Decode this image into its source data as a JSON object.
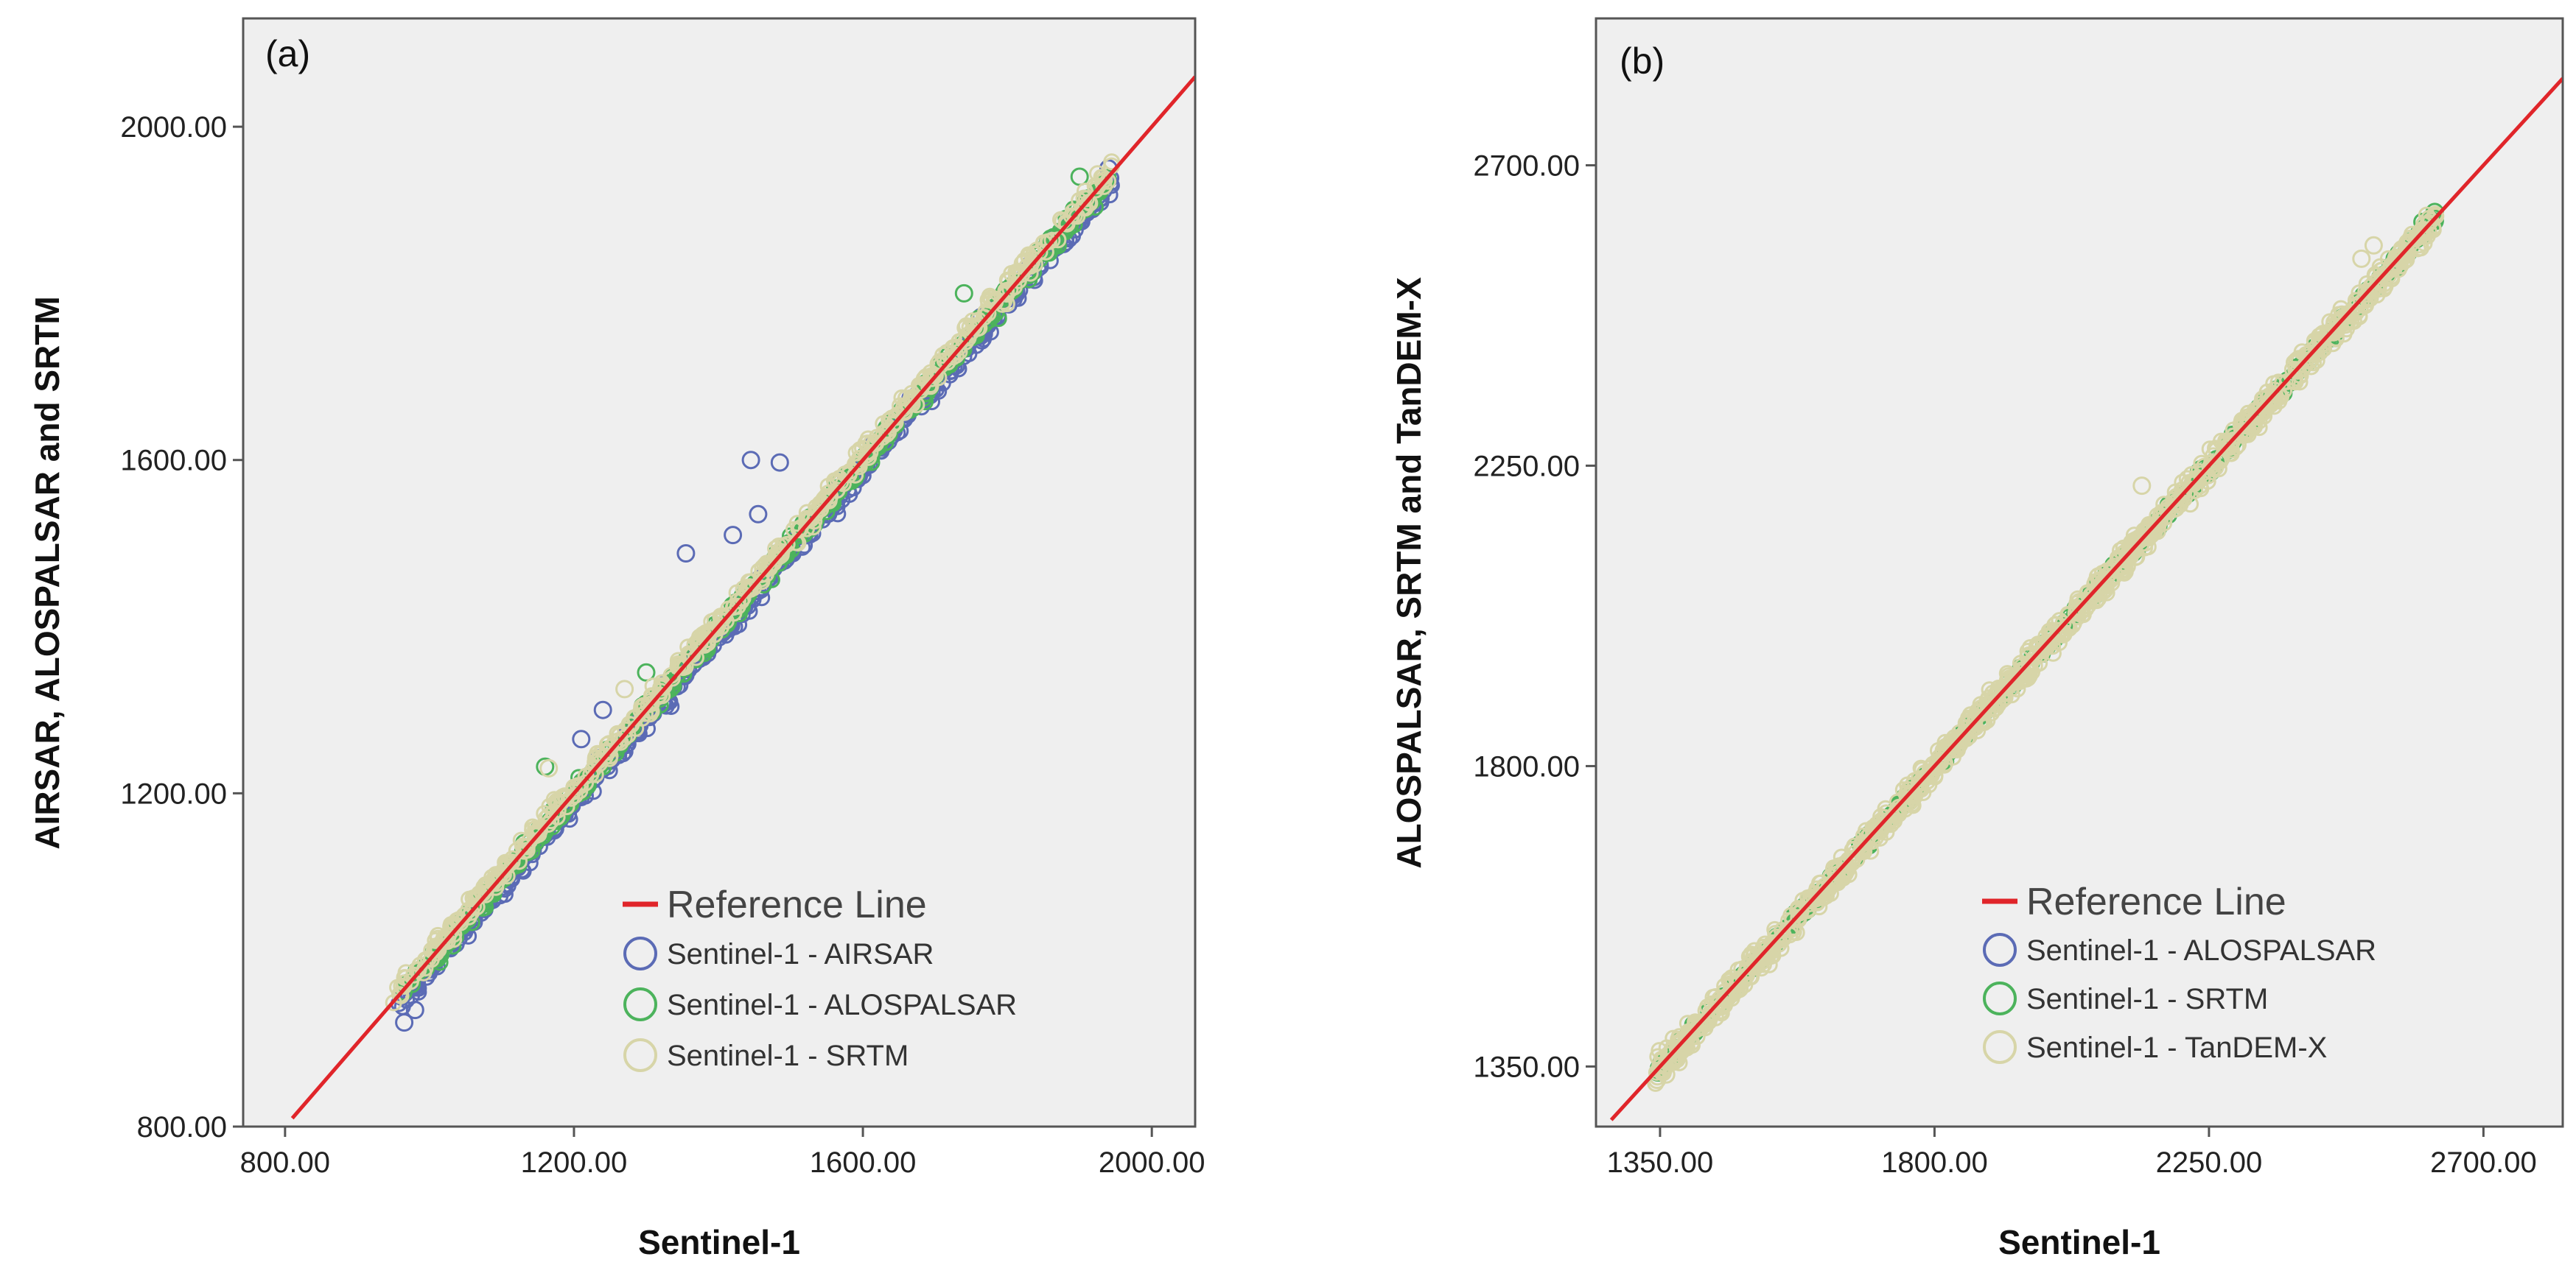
{
  "colors": {
    "airsar": "#5b6bb5",
    "alospalsar": "#4cb35c",
    "srtm": "#d7d5a8",
    "tandemx": "#d7d5a8",
    "reference": "#e0252a",
    "plot_bg": "#efefef"
  },
  "chart_data": [
    {
      "type": "scatter",
      "panel_label": "(a)",
      "xlabel": "Sentinel-1",
      "ylabel": "AIRSAR, ALOSPALSAR and SRTM",
      "xlim": [
        742,
        2060
      ],
      "ylim": [
        800,
        2130
      ],
      "x_ticks": [
        800,
        1200,
        1600,
        2000
      ],
      "y_ticks": [
        800,
        1200,
        1600,
        2000
      ],
      "x_tick_labels": [
        "800.00",
        "1200.00",
        "1600.00",
        "2000.00"
      ],
      "y_tick_labels": [
        "800.00",
        "1200.00",
        "1600.00",
        "2000.00"
      ],
      "grid": false,
      "legend_position": "bottom-right",
      "reference_line": {
        "label": "Reference Line",
        "from": [
          810,
          810
        ],
        "to": [
          2060,
          2060
        ]
      },
      "series": [
        {
          "name": "Sentinel-1 - AIRSAR",
          "key": "airsar",
          "x_range": [
            955,
            1945
          ],
          "offset": -10,
          "spread": 14,
          "outliers": [
            [
              965,
              925
            ],
            [
              980,
              940
            ],
            [
              1355,
              1488
            ],
            [
              1445,
              1600
            ],
            [
              1455,
              1535
            ],
            [
              1485,
              1597
            ],
            [
              1420,
              1510
            ],
            [
              1210,
              1265
            ],
            [
              1240,
              1300
            ],
            [
              1940,
              1950
            ]
          ]
        },
        {
          "name": "Sentinel-1 - ALOSPALSAR",
          "key": "alospalsar",
          "x_range": [
            960,
            1940
          ],
          "offset": -3,
          "spread": 11,
          "outliers": [
            [
              1160,
              1232
            ],
            [
              1300,
              1345
            ],
            [
              1740,
              1800
            ],
            [
              1900,
              1940
            ]
          ]
        },
        {
          "name": "Sentinel-1 - SRTM",
          "key": "srtm",
          "x_range": [
            950,
            1945
          ],
          "offset": 5,
          "spread": 12,
          "outliers": [
            [
              1165,
              1230
            ],
            [
              1270,
              1325
            ]
          ]
        }
      ]
    },
    {
      "type": "scatter",
      "panel_label": "(b)",
      "xlabel": "Sentinel-1",
      "ylabel": "ALOSPALSAR, SRTM and TanDEM-X",
      "xlim": [
        1245,
        2830
      ],
      "ylim": [
        1260,
        2920
      ],
      "x_ticks": [
        1350,
        1800,
        2250,
        2700
      ],
      "y_ticks": [
        1350,
        1800,
        2250,
        2700
      ],
      "x_tick_labels": [
        "1350.00",
        "1800.00",
        "2250.00",
        "2700.00"
      ],
      "y_tick_labels": [
        "1350.00",
        "1800.00",
        "2250.00",
        "2700.00"
      ],
      "grid": false,
      "legend_position": "bottom-right",
      "reference_line": {
        "label": "Reference Line",
        "from": [
          1270,
          1270
        ],
        "to": [
          2830,
          2830
        ]
      },
      "series": [
        {
          "name": "Sentinel-1 - ALOSPALSAR",
          "key": "alospalsar",
          "x_range": [
            1345,
            2625
          ],
          "offset": -2,
          "spread": 10,
          "outliers": [
            [
              2620,
              2630
            ],
            [
              2600,
              2615
            ]
          ]
        },
        {
          "name": "Sentinel-1 - SRTM",
          "key": "srtm",
          "x_range": [
            1340,
            2620
          ],
          "offset": -10,
          "spread": 12,
          "outliers": [
            [
              1345,
              1330
            ],
            [
              1360,
              1338
            ],
            [
              2560,
              2545
            ]
          ]
        },
        {
          "name": "Sentinel-1 - TanDEM-X",
          "key": "tandemx",
          "x_range": [
            1340,
            2625
          ],
          "offset": 6,
          "spread": 14,
          "outliers": [
            [
              2500,
              2560
            ],
            [
              2520,
              2580
            ],
            [
              2140,
              2220
            ]
          ]
        }
      ]
    }
  ]
}
